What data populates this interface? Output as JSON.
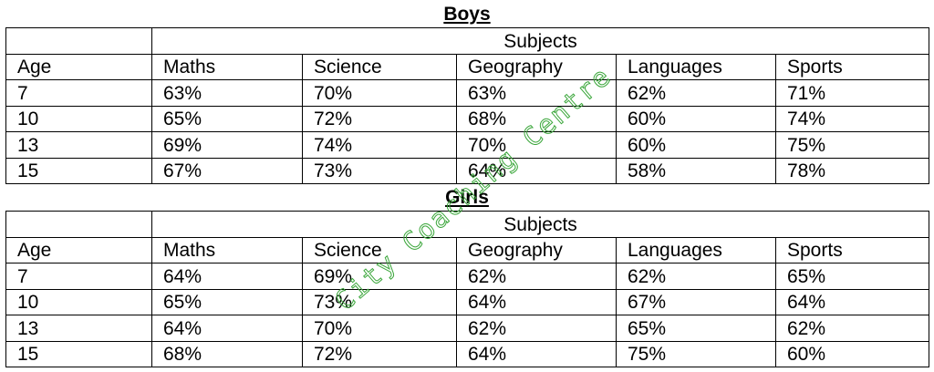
{
  "sections": [
    {
      "title": "Boys",
      "group_header": "Subjects",
      "columns": [
        "Age",
        "Maths",
        "Science",
        "Geography",
        "Languages",
        "Sports"
      ],
      "rows": [
        [
          "7",
          "63%",
          "70%",
          "63%",
          "62%",
          "71%"
        ],
        [
          "10",
          "65%",
          "72%",
          "68%",
          "60%",
          "74%"
        ],
        [
          "13",
          "69%",
          "74%",
          "70%",
          "60%",
          "75%"
        ],
        [
          "15",
          "67%",
          "73%",
          "64%",
          "58%",
          "78%"
        ]
      ]
    },
    {
      "title": "Girls",
      "group_header": "Subjects",
      "columns": [
        "Age",
        "Maths",
        "Science",
        "Geography",
        "Languages",
        "Sports"
      ],
      "rows": [
        [
          "7",
          "64%",
          "69%",
          "62%",
          "62%",
          "65%"
        ],
        [
          "10",
          "65%",
          "73%",
          "64%",
          "67%",
          "64%"
        ],
        [
          "13",
          "64%",
          "70%",
          "62%",
          "65%",
          "62%"
        ],
        [
          "15",
          "68%",
          "72%",
          "64%",
          "75%",
          "60%"
        ]
      ]
    }
  ],
  "watermark": {
    "text": "City Coaching Centre",
    "color": "#3aa63a"
  }
}
